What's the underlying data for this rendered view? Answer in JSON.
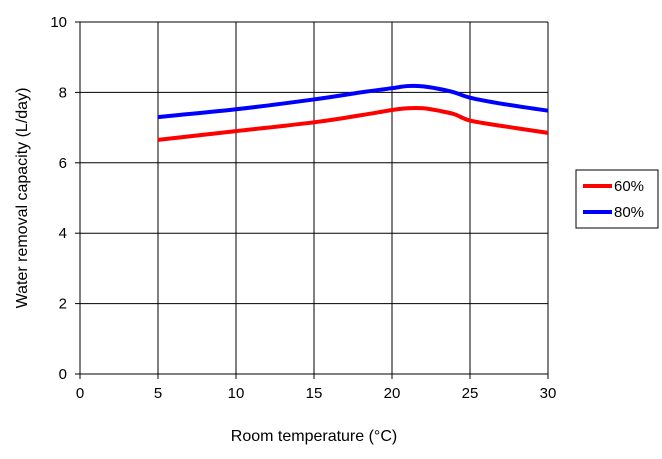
{
  "chart_data": {
    "type": "line",
    "title": "",
    "xlabel": "Room temperature (°C)",
    "ylabel": "Water removal capacity (L/day)",
    "xlim": [
      0,
      30
    ],
    "ylim": [
      0,
      10
    ],
    "xticks": [
      "0",
      "5",
      "10",
      "15",
      "20",
      "25",
      "30"
    ],
    "yticks": [
      "0",
      "2",
      "4",
      "6",
      "8",
      "10"
    ],
    "grid": true,
    "legend_position": "right",
    "series": [
      {
        "name": "60%",
        "color": "#ff0000",
        "points": [
          [
            5,
            6.65
          ],
          [
            10,
            6.9
          ],
          [
            15,
            7.15
          ],
          [
            18,
            7.35
          ],
          [
            20,
            7.5
          ],
          [
            21,
            7.55
          ],
          [
            22,
            7.55
          ],
          [
            23,
            7.48
          ],
          [
            24,
            7.38
          ],
          [
            25,
            7.2
          ],
          [
            27,
            7.05
          ],
          [
            30,
            6.85
          ]
        ]
      },
      {
        "name": "80%",
        "color": "#0000ff",
        "points": [
          [
            5,
            7.3
          ],
          [
            10,
            7.52
          ],
          [
            15,
            7.8
          ],
          [
            18,
            8.0
          ],
          [
            20,
            8.12
          ],
          [
            21,
            8.18
          ],
          [
            22,
            8.17
          ],
          [
            23,
            8.1
          ],
          [
            24,
            8.0
          ],
          [
            25,
            7.85
          ],
          [
            27,
            7.68
          ],
          [
            30,
            7.48
          ]
        ]
      }
    ]
  }
}
